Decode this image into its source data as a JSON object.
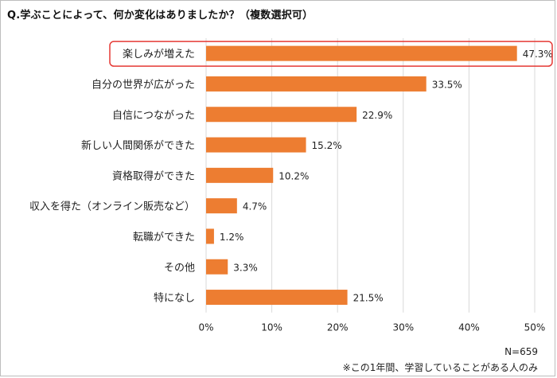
{
  "title": "Q.学ぶことによって、何か変化はありましたか？（複数選択可）",
  "sample_note": "N=659",
  "footnote": "※この1年間、学習していることがある人のみ",
  "colors": {
    "bar": "#ED7D31",
    "highlight_border": "#E53935",
    "grid": "#d9d9d9"
  },
  "chart_data": {
    "type": "bar",
    "orientation": "horizontal",
    "title": "Q.学ぶことによって、何か変化はありましたか？（複数選択可）",
    "categories": [
      "楽しみが増えた",
      "自分の世界が広がった",
      "自信につながった",
      "新しい人間関係ができた",
      "資格取得ができた",
      "収入を得た（オンライン販売など）",
      "転職ができた",
      "その他",
      "特になし"
    ],
    "values": [
      47.3,
      33.5,
      22.9,
      15.2,
      10.2,
      4.7,
      1.2,
      3.3,
      21.5
    ],
    "value_labels": [
      "47.3%",
      "33.5%",
      "22.9%",
      "15.2%",
      "10.2%",
      "4.7%",
      "1.2%",
      "3.3%",
      "21.5%"
    ],
    "xlim": [
      0,
      50
    ],
    "xticks": [
      0,
      10,
      20,
      30,
      40,
      50
    ],
    "xtick_labels": [
      "0%",
      "10%",
      "20%",
      "30%",
      "40%",
      "50%"
    ],
    "grid": true,
    "highlighted_category": "楽しみが増えた"
  }
}
